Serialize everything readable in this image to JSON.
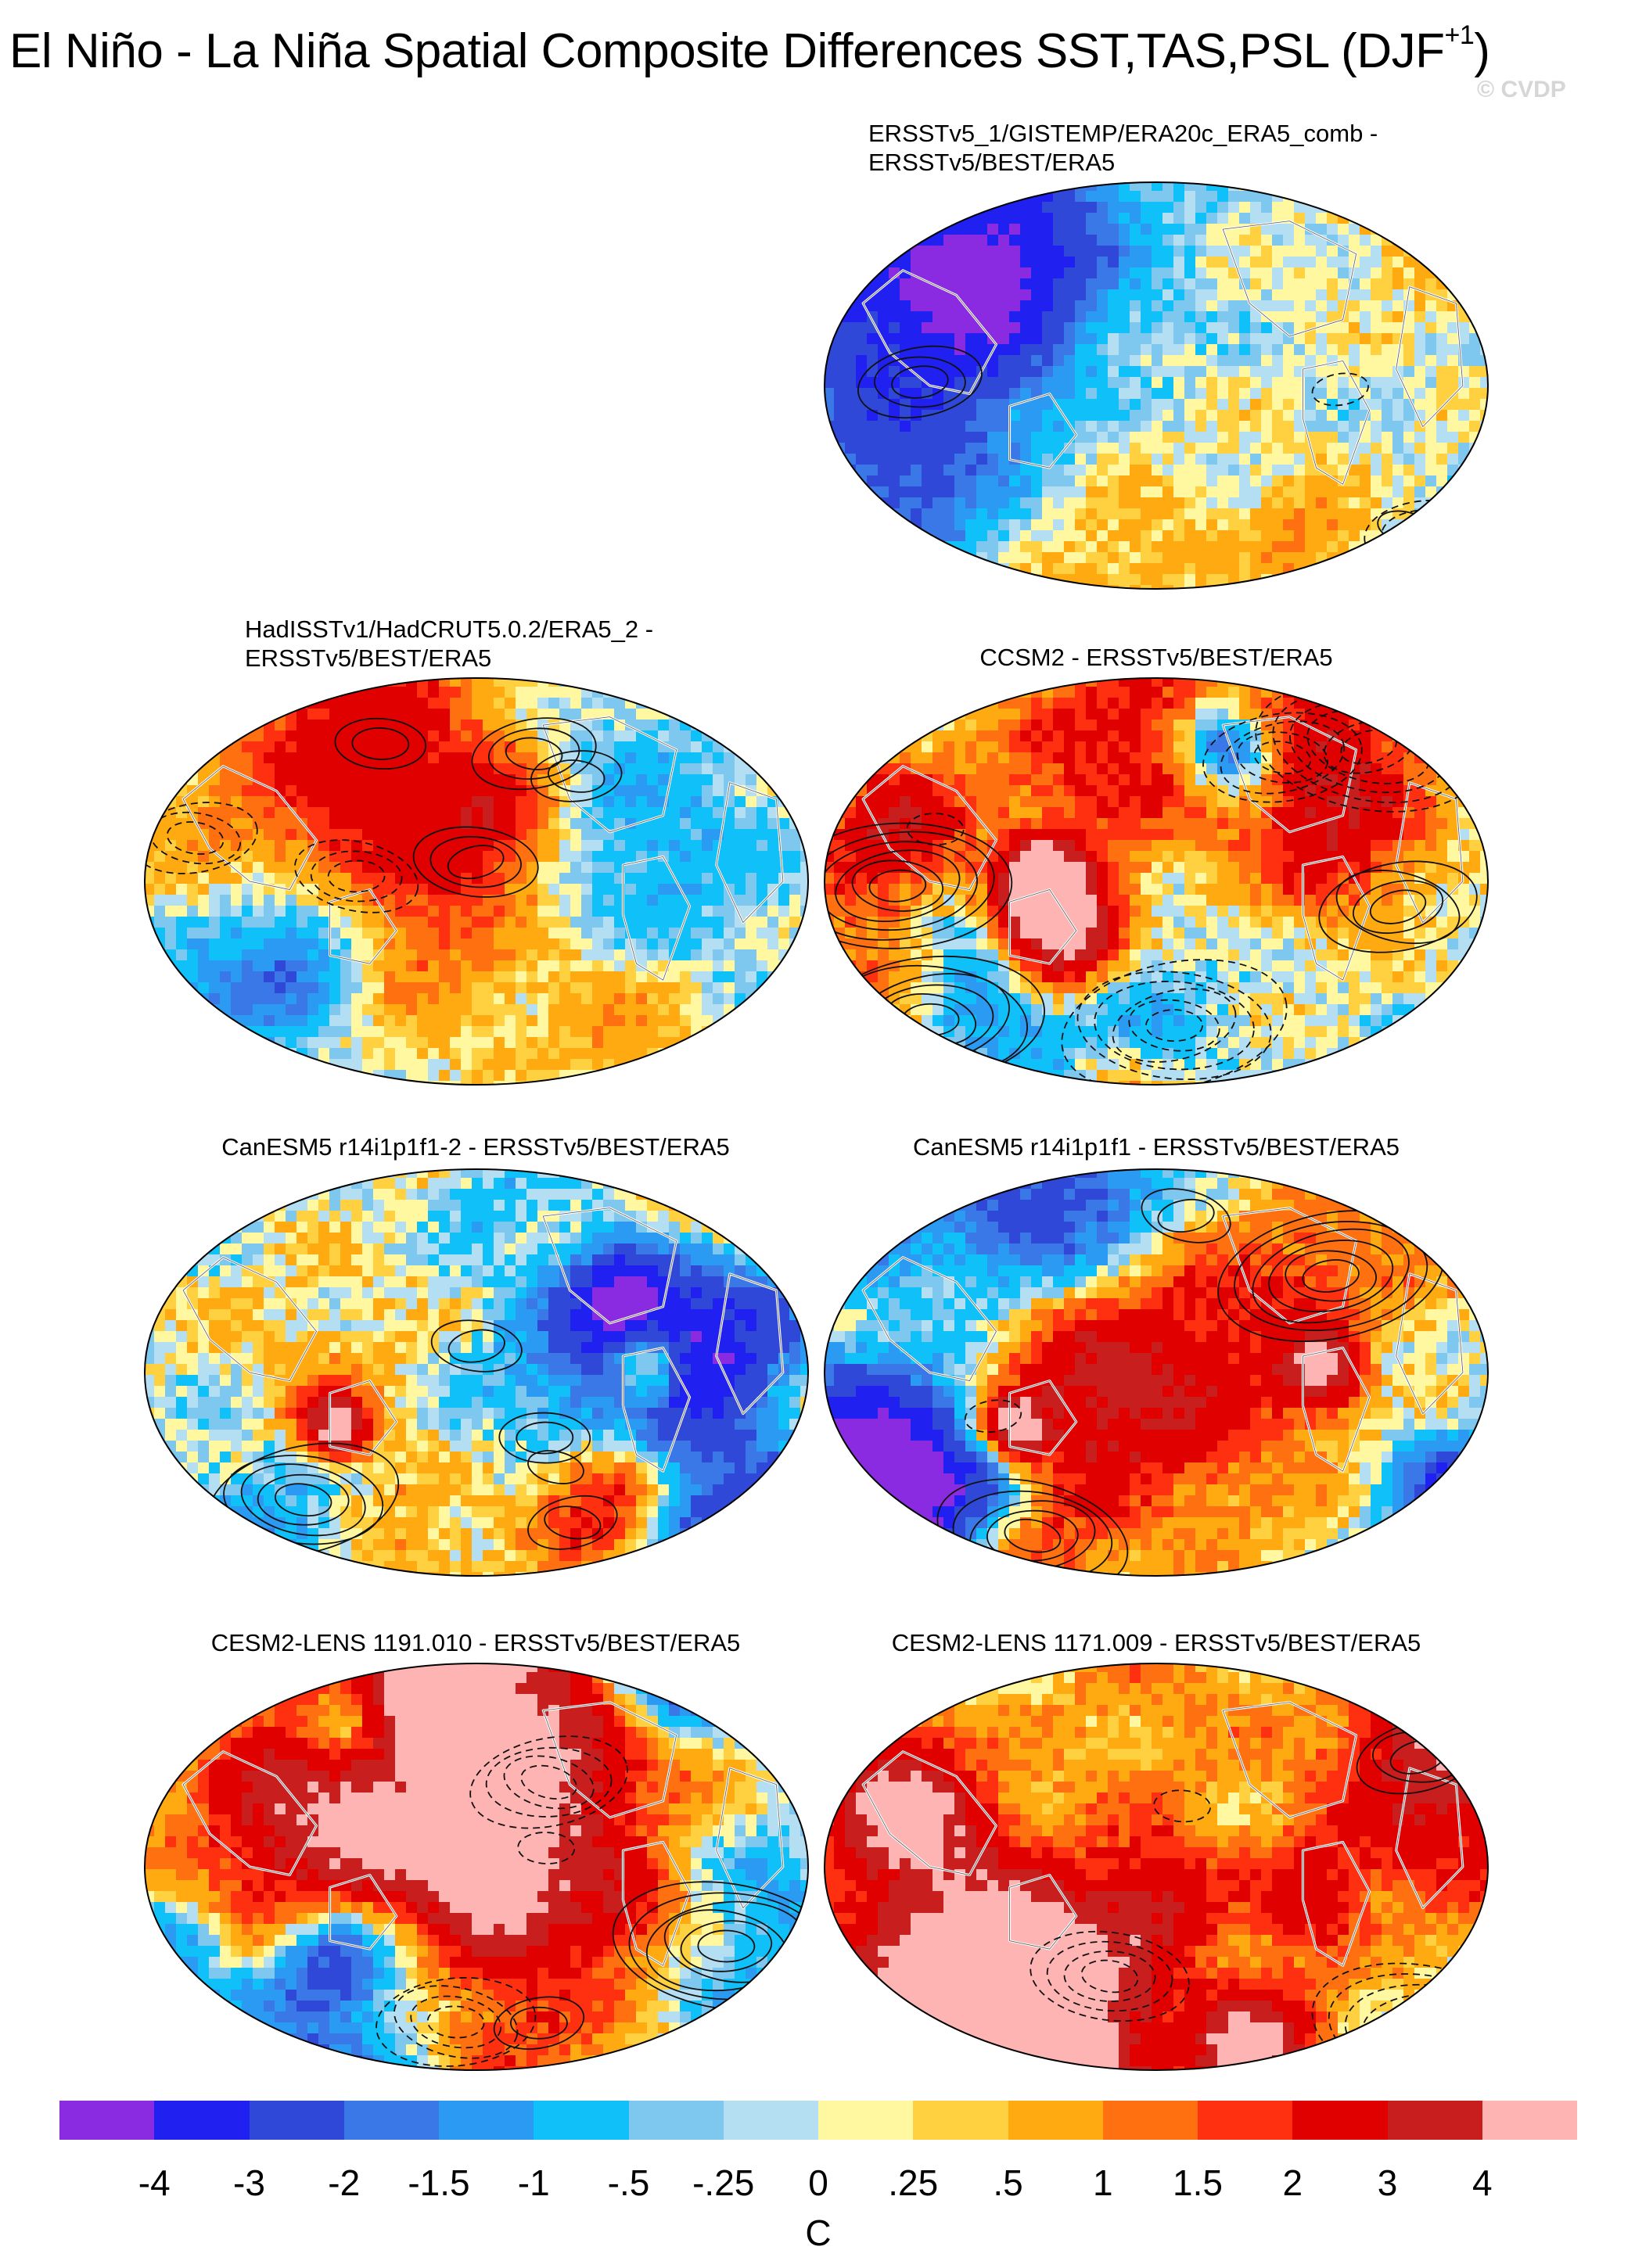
{
  "title": {
    "text": "El Niño - La Niña Spatial Composite Differences SST,TAS,PSL (DJF",
    "superscript": "+1",
    "closing": ")"
  },
  "watermark": "© CVDP",
  "panels": [
    {
      "id": "p1",
      "line1": "ERSSTv5_1/GISTEMP/ERA20c_ERA5_comb -",
      "line2": "ERSSTv5/BEST/ERA5",
      "seed": 11,
      "style": "obs"
    },
    {
      "id": "p2",
      "line1": "HadISSTv1/HadCRUT5.0.2/ERA5_2 -",
      "line2": "ERSSTv5/BEST/ERA5",
      "seed": 23,
      "style": "obs"
    },
    {
      "id": "p3",
      "line1": "CCSM2 - ERSSTv5/BEST/ERA5",
      "line2": "",
      "seed": 37,
      "style": "ccsm"
    },
    {
      "id": "p4",
      "line1": "CanESM5 r14i1p1f1-2 - ERSSTv5/BEST/ERA5",
      "line2": "",
      "seed": 41,
      "style": "canesm"
    },
    {
      "id": "p5",
      "line1": "CanESM5 r14i1p1f1 - ERSSTv5/BEST/ERA5",
      "line2": "",
      "seed": 43,
      "style": "canesm"
    },
    {
      "id": "p6",
      "line1": "CESM2-LENS 1191.010 - ERSSTv5/BEST/ERA5",
      "line2": "",
      "seed": 57,
      "style": "cesm"
    },
    {
      "id": "p7",
      "line1": "CESM2-LENS 1171.009 - ERSSTv5/BEST/ERA5",
      "line2": "",
      "seed": 61,
      "style": "cesm"
    }
  ],
  "colorbar": {
    "colors": [
      "#8a2be2",
      "#2020f0",
      "#2f48d8",
      "#3a78e8",
      "#2a9af2",
      "#10c0f8",
      "#7ec8f0",
      "#b4def2",
      "#fff8a0",
      "#ffd040",
      "#ffaa10",
      "#ff7010",
      "#ff3010",
      "#e00000",
      "#c81e1e",
      "#ffb4b4"
    ],
    "ticks": [
      "-4",
      "-3",
      "-2",
      "-1.5",
      "-1",
      "-.5",
      "-.25",
      "0",
      ".25",
      ".5",
      "1",
      "1.5",
      "2",
      "3",
      "4"
    ],
    "units": "C"
  }
}
